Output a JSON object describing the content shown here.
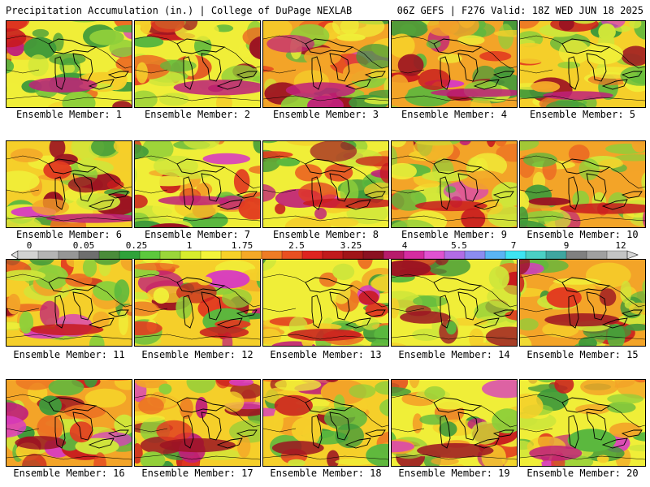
{
  "header": {
    "title_left": "Precipitation Accumulation (in.) | College of DuPage NEXLAB",
    "title_right": "06Z GEFS | F276 Valid: 18Z WED JUN 18 2025"
  },
  "legend": {
    "labels": [
      "0",
      "0.05",
      "0.25",
      "1",
      "1.75",
      "2.5",
      "3.25",
      "4",
      "5.5",
      "7",
      "9",
      "12"
    ],
    "colors": [
      "#d2d2d2",
      "#b4b4b4",
      "#969696",
      "#6e6e6e",
      "#4a8c3a",
      "#2fa23a",
      "#5cc83c",
      "#9ad63a",
      "#d7ec2d",
      "#f4f43a",
      "#f7d128",
      "#f4a927",
      "#ef7c25",
      "#e94f21",
      "#de2320",
      "#c11a1c",
      "#a11418",
      "#8b1021",
      "#b71b6b",
      "#d42ca0",
      "#e052d0",
      "#b26ce4",
      "#8c8cf0",
      "#5ab4f4",
      "#3ee4f2",
      "#4ad0c4",
      "#3fa6a0",
      "#808080",
      "#a0a0a0",
      "#c4c4c4"
    ]
  },
  "panels": [
    {
      "caption": "Ensemble Member: 1"
    },
    {
      "caption": "Ensemble Member: 2"
    },
    {
      "caption": "Ensemble Member: 3"
    },
    {
      "caption": "Ensemble Member: 4"
    },
    {
      "caption": "Ensemble Member: 5"
    },
    {
      "caption": "Ensemble Member: 6"
    },
    {
      "caption": "Ensemble Member: 7"
    },
    {
      "caption": "Ensemble Member: 8"
    },
    {
      "caption": "Ensemble Member: 9"
    },
    {
      "caption": "Ensemble Member: 10"
    },
    {
      "caption": "Ensemble Member: 11"
    },
    {
      "caption": "Ensemble Member: 12"
    },
    {
      "caption": "Ensemble Member: 13"
    },
    {
      "caption": "Ensemble Member: 14"
    },
    {
      "caption": "Ensemble Member: 15"
    },
    {
      "caption": "Ensemble Member: 16"
    },
    {
      "caption": "Ensemble Member: 17"
    },
    {
      "caption": "Ensemble Member: 18"
    },
    {
      "caption": "Ensemble Member: 19"
    },
    {
      "caption": "Ensemble Member: 20"
    }
  ]
}
